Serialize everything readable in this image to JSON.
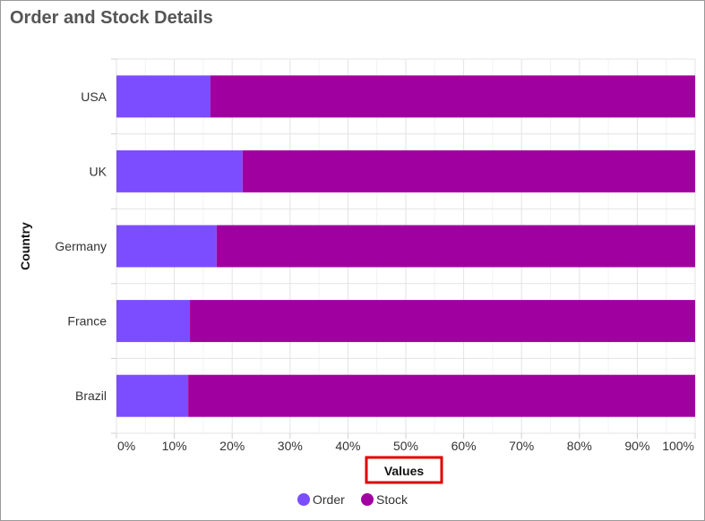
{
  "chart_data": {
    "type": "bar",
    "orientation": "horizontal",
    "stacked": "100%",
    "title": "Order and Stock Details",
    "xlabel": "Values",
    "ylabel": "Country",
    "categories": [
      "USA",
      "UK",
      "Germany",
      "France",
      "Brazil"
    ],
    "series": [
      {
        "name": "Order",
        "color": "#7c4dff",
        "values": [
          16.2,
          21.8,
          17.3,
          12.7,
          12.4
        ]
      },
      {
        "name": "Stock",
        "color": "#a100a1",
        "values": [
          83.8,
          78.2,
          82.7,
          87.3,
          87.6
        ]
      }
    ],
    "x_ticks": [
      "0%",
      "10%",
      "20%",
      "30%",
      "40%",
      "50%",
      "60%",
      "70%",
      "80%",
      "90%",
      "100%"
    ],
    "xlim": [
      0,
      100
    ],
    "grid": true,
    "legend_position": "bottom",
    "xlabel_highlight_color": "#e00000"
  }
}
